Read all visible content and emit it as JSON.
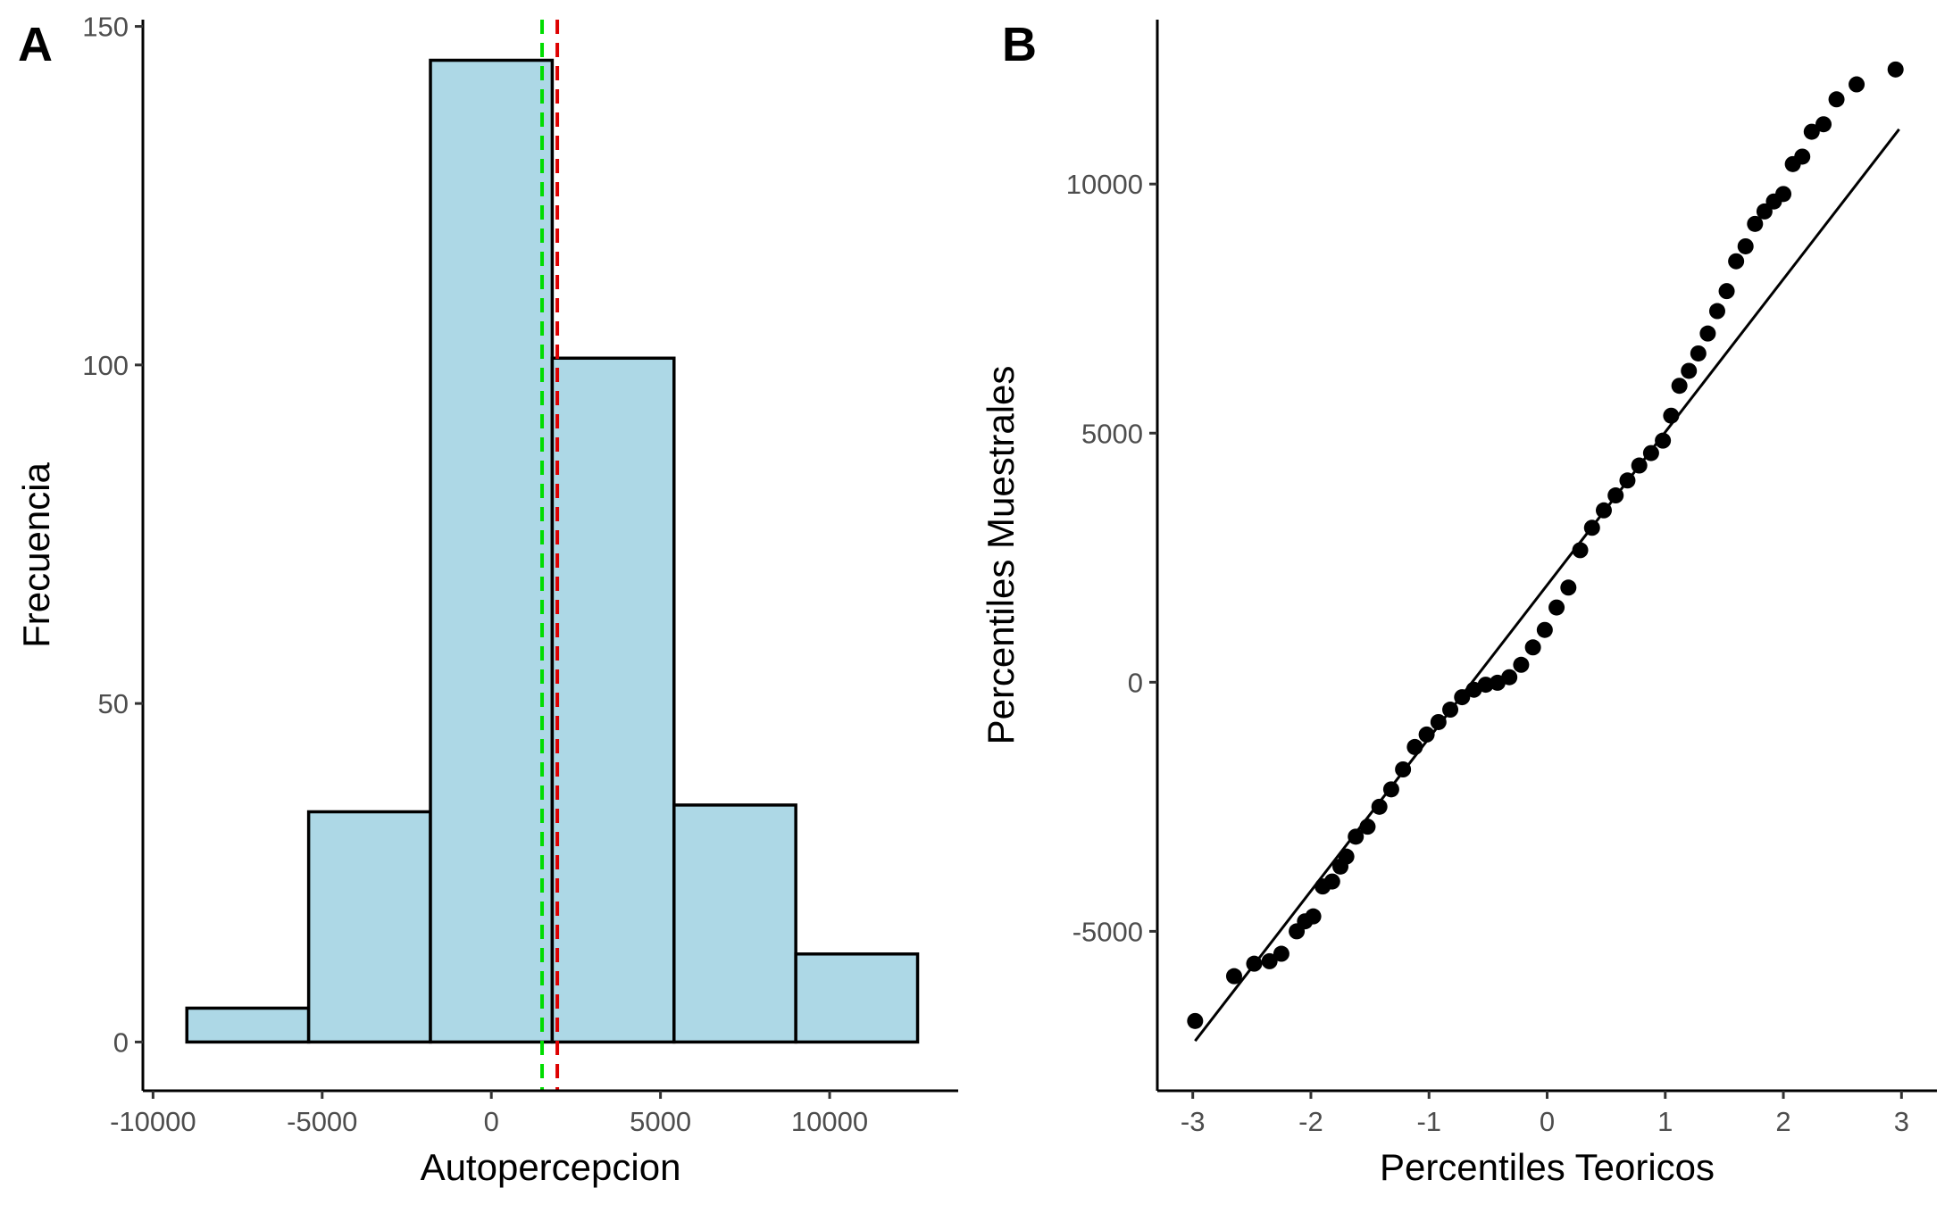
{
  "chart_data": [
    {
      "panel": "A",
      "type": "bar",
      "xlabel": "Autopercepcion",
      "ylabel": "Frecuencia",
      "xlim": [
        -10300,
        13800
      ],
      "ylim": [
        -7.2,
        151
      ],
      "xticks": [
        -10000,
        -5000,
        0,
        5000,
        10000
      ],
      "xtick_labels": [
        "-10000",
        "-5000",
        "0",
        "5000",
        "10000"
      ],
      "yticks": [
        0,
        50,
        100,
        150
      ],
      "ytick_labels": [
        "0",
        "50",
        "100",
        "150"
      ],
      "bins": [
        {
          "start": -9000,
          "end": -5400,
          "value": 5
        },
        {
          "start": -5400,
          "end": -1800,
          "value": 34
        },
        {
          "start": -1800,
          "end": 1800,
          "value": 145
        },
        {
          "start": 1800,
          "end": 5400,
          "value": 101
        },
        {
          "start": 5400,
          "end": 9000,
          "value": 35
        },
        {
          "start": 9000,
          "end": 12600,
          "value": 13
        }
      ],
      "bar_fill": "#add8e6",
      "bar_stroke": "#000000",
      "reference_lines": [
        {
          "x": 1500,
          "color": "#00dd00",
          "style": "dashed"
        },
        {
          "x": 1950,
          "color": "#dd0000",
          "style": "dashed"
        }
      ],
      "grid": false
    },
    {
      "panel": "B",
      "type": "scatter",
      "xlabel": "Percentiles Teoricos",
      "ylabel": "Percentiles Muestrales",
      "xlim": [
        -3.3,
        3.3
      ],
      "ylim": [
        -8200,
        13300
      ],
      "xticks": [
        -3,
        -2,
        -1,
        0,
        1,
        2,
        3
      ],
      "xtick_labels": [
        "-3",
        "-2",
        "-1",
        "0",
        "1",
        "2",
        "3"
      ],
      "yticks": [
        -5000,
        0,
        5000,
        10000
      ],
      "ytick_labels": [
        "-5000",
        "0",
        "5000",
        "10000"
      ],
      "points": [
        [
          -2.98,
          -6800
        ],
        [
          -2.65,
          -5900
        ],
        [
          -2.48,
          -5650
        ],
        [
          -2.35,
          -5600
        ],
        [
          -2.25,
          -5450
        ],
        [
          -2.12,
          -5000
        ],
        [
          -2.05,
          -4800
        ],
        [
          -1.98,
          -4700
        ],
        [
          -1.9,
          -4100
        ],
        [
          -1.82,
          -4000
        ],
        [
          -1.75,
          -3700
        ],
        [
          -1.7,
          -3500
        ],
        [
          -1.62,
          -3100
        ],
        [
          -1.52,
          -2900
        ],
        [
          -1.42,
          -2500
        ],
        [
          -1.32,
          -2150
        ],
        [
          -1.22,
          -1750
        ],
        [
          -1.12,
          -1300
        ],
        [
          -1.02,
          -1050
        ],
        [
          -0.92,
          -800
        ],
        [
          -0.82,
          -550
        ],
        [
          -0.72,
          -300
        ],
        [
          -0.62,
          -150
        ],
        [
          -0.52,
          -50
        ],
        [
          -0.42,
          -10
        ],
        [
          -0.32,
          100
        ],
        [
          -0.22,
          350
        ],
        [
          -0.12,
          700
        ],
        [
          -0.02,
          1050
        ],
        [
          0.08,
          1500
        ],
        [
          0.18,
          1900
        ],
        [
          0.28,
          2650
        ],
        [
          0.38,
          3100
        ],
        [
          0.48,
          3450
        ],
        [
          0.58,
          3750
        ],
        [
          0.68,
          4050
        ],
        [
          0.78,
          4350
        ],
        [
          0.88,
          4600
        ],
        [
          0.98,
          4850
        ],
        [
          1.05,
          5350
        ],
        [
          1.12,
          5950
        ],
        [
          1.2,
          6250
        ],
        [
          1.28,
          6600
        ],
        [
          1.36,
          7000
        ],
        [
          1.44,
          7450
        ],
        [
          1.52,
          7850
        ],
        [
          1.6,
          8450
        ],
        [
          1.68,
          8750
        ],
        [
          1.76,
          9200
        ],
        [
          1.84,
          9450
        ],
        [
          1.92,
          9650
        ],
        [
          2.0,
          9800
        ],
        [
          2.08,
          10400
        ],
        [
          2.16,
          10550
        ],
        [
          2.24,
          11050
        ],
        [
          2.34,
          11200
        ],
        [
          2.45,
          11700
        ],
        [
          2.62,
          12000
        ],
        [
          2.95,
          12300
        ]
      ],
      "reference_line": {
        "x": [
          -2.98,
          2.98
        ],
        "y": [
          -7200,
          11100
        ]
      },
      "point_color": "#000000",
      "grid": false
    }
  ]
}
